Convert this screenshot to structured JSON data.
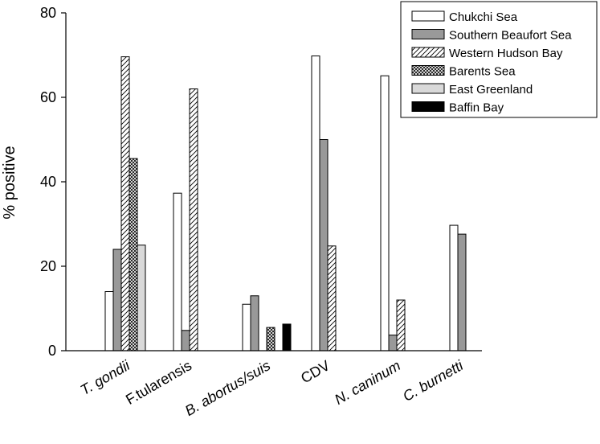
{
  "chart_data": {
    "type": "bar",
    "title": "",
    "xlabel": "",
    "ylabel": "% positive",
    "ylim": [
      0,
      80
    ],
    "yticks": [
      0,
      20,
      40,
      60,
      80
    ],
    "grid": false,
    "legend_position": "top-right",
    "categories": [
      "T. gondii",
      "F.tularensis",
      "B. abortus/suis",
      "CDV",
      "N. caninum",
      "C. burnetti"
    ],
    "categories_italic": [
      true,
      false,
      true,
      false,
      true,
      true
    ],
    "series": [
      {
        "name": "Chukchi Sea",
        "fill": "white",
        "values": [
          14,
          37.3,
          11,
          69.8,
          65.1,
          29.7
        ]
      },
      {
        "name": "Southern Beaufort Sea",
        "fill": "gray",
        "values": [
          24,
          4.8,
          13,
          50,
          3.7,
          27.6
        ]
      },
      {
        "name": "Western Hudson Bay",
        "fill": "hatch",
        "values": [
          69.6,
          62,
          null,
          24.8,
          12,
          null
        ]
      },
      {
        "name": "Barents Sea",
        "fill": "crosshatch",
        "values": [
          45.5,
          null,
          5.5,
          null,
          null,
          null
        ]
      },
      {
        "name": "East Greenland",
        "fill": "lightgray",
        "values": [
          25,
          null,
          null,
          null,
          null,
          null
        ]
      },
      {
        "name": "Baffin Bay",
        "fill": "black",
        "values": [
          null,
          null,
          6.3,
          null,
          null,
          null
        ]
      }
    ]
  }
}
